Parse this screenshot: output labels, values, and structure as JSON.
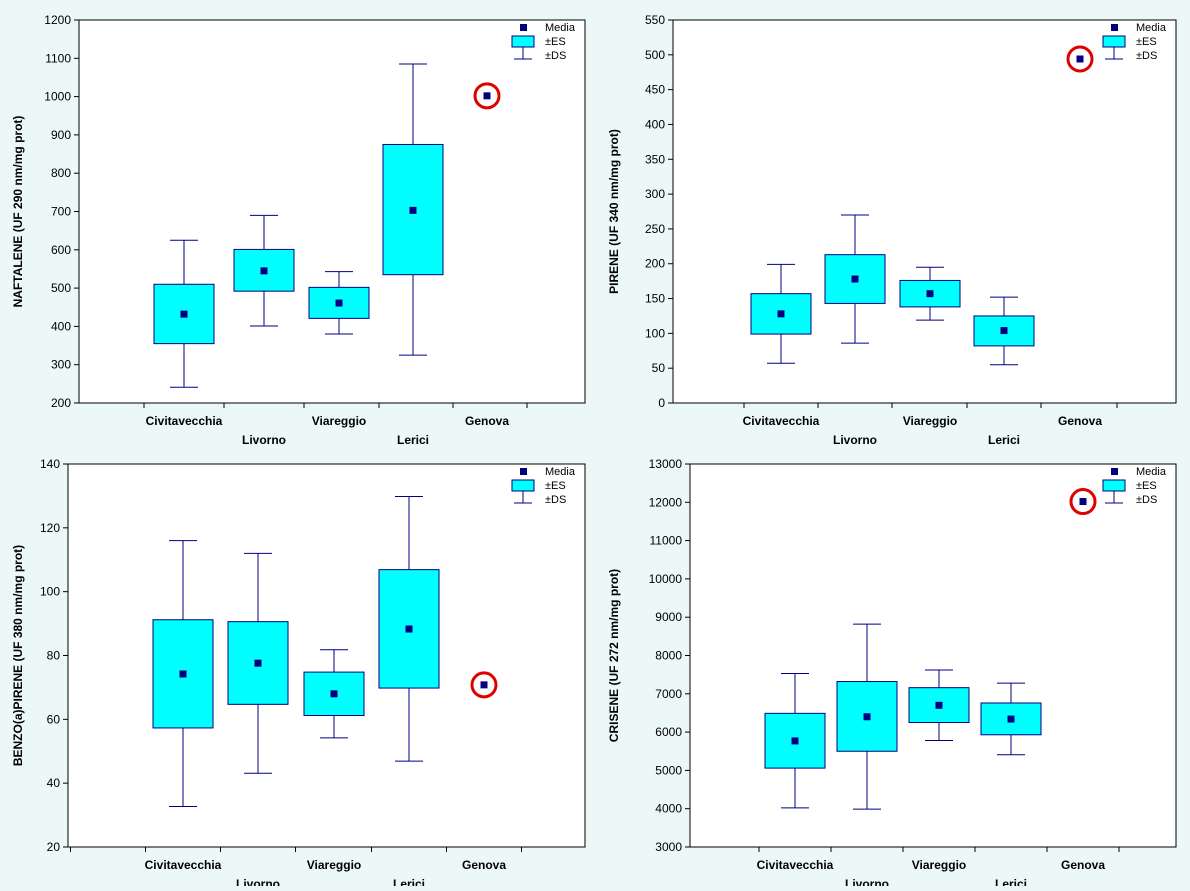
{
  "colors": {
    "background": "#ecf7f8",
    "plot_bg": "#ffffff",
    "box_fill": "#00ffff",
    "line": "#000080",
    "mean_marker": "#000080",
    "highlight_circle": "#e00000"
  },
  "chart_data": [
    {
      "type": "box",
      "ylabel": "NAFTALENE (UF 290 nm/mg prot)",
      "ylim": [
        200,
        1200
      ],
      "yticks": [
        200,
        300,
        400,
        500,
        600,
        700,
        800,
        900,
        1000,
        1100,
        1200
      ],
      "legend": {
        "placement": "top-right",
        "entries": [
          "Media",
          "±ES",
          "±DS"
        ]
      },
      "categories": [
        "Civitavecchia",
        "Livorno",
        "Viareggio",
        "Lerici",
        "Genova"
      ],
      "series": [
        {
          "category": "Civitavecchia",
          "mean": 432,
          "es_low": 355,
          "es_high": 510,
          "ds_low": 241,
          "ds_high": 625
        },
        {
          "category": "Livorno",
          "mean": 545,
          "es_low": 492,
          "es_high": 601,
          "ds_low": 401,
          "ds_high": 690
        },
        {
          "category": "Viareggio",
          "mean": 461,
          "es_low": 421,
          "es_high": 502,
          "ds_low": 380,
          "ds_high": 543
        },
        {
          "category": "Lerici",
          "mean": 703,
          "es_low": 535,
          "es_high": 875,
          "ds_low": 325,
          "ds_high": 1085
        },
        {
          "category": "Genova",
          "mean": 1002,
          "highlighted": true
        }
      ]
    },
    {
      "type": "box",
      "ylabel": "PIRENE (UF 340 nm/mg prot)",
      "ylim": [
        0,
        550
      ],
      "yticks": [
        0,
        50,
        100,
        150,
        200,
        250,
        300,
        350,
        400,
        450,
        500,
        550
      ],
      "legend": {
        "placement": "top-right",
        "entries": [
          "Media",
          "±ES",
          "±DS"
        ]
      },
      "categories": [
        "Civitavecchia",
        "Livorno",
        "Viareggio",
        "Lerici",
        "Genova"
      ],
      "series": [
        {
          "category": "Civitavecchia",
          "mean": 128,
          "es_low": 99,
          "es_high": 157,
          "ds_low": 57,
          "ds_high": 199
        },
        {
          "category": "Livorno",
          "mean": 178,
          "es_low": 143,
          "es_high": 213,
          "ds_low": 86,
          "ds_high": 270
        },
        {
          "category": "Viareggio",
          "mean": 157,
          "es_low": 138,
          "es_high": 176,
          "ds_low": 119,
          "ds_high": 195
        },
        {
          "category": "Lerici",
          "mean": 104,
          "es_low": 82,
          "es_high": 125,
          "ds_low": 55,
          "ds_high": 152
        },
        {
          "category": "Genova",
          "mean": 494,
          "highlighted": true
        }
      ]
    },
    {
      "type": "box",
      "ylabel": "BENZO(a)PIRENE (UF 380 nm/mg prot)",
      "ylim": [
        20,
        140
      ],
      "yticks": [
        20,
        40,
        60,
        80,
        100,
        120,
        140
      ],
      "legend": {
        "placement": "top-right",
        "entries": [
          "Media",
          "±ES",
          "±DS"
        ]
      },
      "categories": [
        "Civitavecchia",
        "Livorno",
        "Viareggio",
        "Lerici",
        "Genova"
      ],
      "series": [
        {
          "category": "Civitavecchia",
          "mean": 74.2,
          "es_low": 57.3,
          "es_high": 91.2,
          "ds_low": 32.7,
          "ds_high": 116
        },
        {
          "category": "Livorno",
          "mean": 77.6,
          "es_low": 64.7,
          "es_high": 90.6,
          "ds_low": 43.1,
          "ds_high": 112
        },
        {
          "category": "Viareggio",
          "mean": 68,
          "es_low": 61.2,
          "es_high": 74.8,
          "ds_low": 54.2,
          "ds_high": 81.8
        },
        {
          "category": "Lerici",
          "mean": 88.3,
          "es_low": 69.8,
          "es_high": 106.9,
          "ds_low": 46.9,
          "ds_high": 129.8
        },
        {
          "category": "Genova",
          "mean": 70.8,
          "highlighted": true
        }
      ]
    },
    {
      "type": "box",
      "ylabel": "CRISENE (UF 272 nm/mg prot)",
      "ylim": [
        3000,
        13000
      ],
      "yticks": [
        3000,
        4000,
        5000,
        6000,
        7000,
        8000,
        9000,
        10000,
        11000,
        12000,
        13000
      ],
      "legend": {
        "placement": "top-right",
        "entries": [
          "Media",
          "±ES",
          "±DS"
        ]
      },
      "categories": [
        "Civitavecchia",
        "Livorno",
        "Viareggio",
        "Lerici",
        "Genova"
      ],
      "series": [
        {
          "category": "Civitavecchia",
          "mean": 5770,
          "es_low": 5060,
          "es_high": 6490,
          "ds_low": 4020,
          "ds_high": 7530
        },
        {
          "category": "Livorno",
          "mean": 6400,
          "es_low": 5500,
          "es_high": 7320,
          "ds_low": 3990,
          "ds_high": 8820
        },
        {
          "category": "Viareggio",
          "mean": 6700,
          "es_low": 6250,
          "es_high": 7160,
          "ds_low": 5780,
          "ds_high": 7620
        },
        {
          "category": "Lerici",
          "mean": 6340,
          "es_low": 5930,
          "es_high": 6760,
          "ds_low": 5410,
          "ds_high": 7280
        },
        {
          "category": "Genova",
          "mean": 12020,
          "highlighted": true
        }
      ]
    }
  ]
}
